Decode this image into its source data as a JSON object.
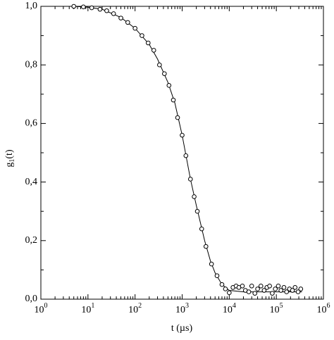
{
  "chart_data": {
    "type": "scatter",
    "x_label": "t (µs)",
    "y_label": {
      "base": "g",
      "sub": "1",
      "arg": "(t)"
    },
    "log_x": true,
    "xlim": [
      1,
      1000000
    ],
    "ylim": [
      0,
      1
    ],
    "xticks": [
      {
        "value": 1,
        "label": "10",
        "sup": "0"
      },
      {
        "value": 10,
        "label": "10",
        "sup": "1"
      },
      {
        "value": 100,
        "label": "10",
        "sup": "2"
      },
      {
        "value": 1000,
        "label": "10",
        "sup": "3"
      },
      {
        "value": 10000,
        "label": "10",
        "sup": "4"
      },
      {
        "value": 100000,
        "label": "10",
        "sup": "5"
      },
      {
        "value": 1000000,
        "label": "10",
        "sup": "6"
      }
    ],
    "yticks": [
      {
        "value": 0,
        "label": "0,0"
      },
      {
        "value": 0.2,
        "label": "0,2"
      },
      {
        "value": 0.4,
        "label": "0,4"
      },
      {
        "value": 0.6,
        "label": "0,6"
      },
      {
        "value": 0.8,
        "label": "0,8"
      },
      {
        "value": 1,
        "label": "1,0"
      }
    ],
    "color": "#000000",
    "x": [
      5,
      8,
      12,
      18,
      25,
      35,
      50,
      70,
      100,
      140,
      190,
      250,
      330,
      420,
      525,
      650,
      800,
      1000,
      1200,
      1500,
      1800,
      2100,
      2600,
      3200,
      4200,
      5500,
      7000,
      8300,
      10000,
      12000,
      14000,
      16000,
      19000,
      22000,
      26000,
      30000,
      35000,
      40000,
      47000,
      55000,
      63000,
      72000,
      82000,
      95000,
      110000,
      125000,
      145000,
      165000,
      190000,
      220000,
      250000,
      290000,
      330000
    ],
    "values": [
      1.0,
      0.998,
      0.995,
      0.99,
      0.985,
      0.975,
      0.96,
      0.945,
      0.925,
      0.9,
      0.875,
      0.85,
      0.8,
      0.77,
      0.73,
      0.68,
      0.62,
      0.56,
      0.49,
      0.41,
      0.35,
      0.3,
      0.24,
      0.18,
      0.12,
      0.08,
      0.05,
      0.035,
      0.022,
      0.04,
      0.045,
      0.04,
      0.045,
      0.03,
      0.025,
      0.045,
      0.02,
      0.035,
      0.045,
      0.03,
      0.04,
      0.045,
      0.02,
      0.035,
      0.045,
      0.03,
      0.04,
      0.025,
      0.035,
      0.03,
      0.04,
      0.025,
      0.035
    ],
    "fit": {
      "x": [
        5,
        10,
        20,
        50,
        100,
        200,
        300,
        500,
        700,
        1000,
        1500,
        2000,
        3000,
        4000,
        5000,
        7000,
        10000,
        20000,
        50000,
        100000,
        350000
      ],
      "values": [
        1.0,
        0.997,
        0.99,
        0.962,
        0.925,
        0.87,
        0.82,
        0.74,
        0.67,
        0.56,
        0.41,
        0.32,
        0.2,
        0.13,
        0.09,
        0.05,
        0.03,
        0.025,
        0.025,
        0.025,
        0.025
      ]
    }
  }
}
